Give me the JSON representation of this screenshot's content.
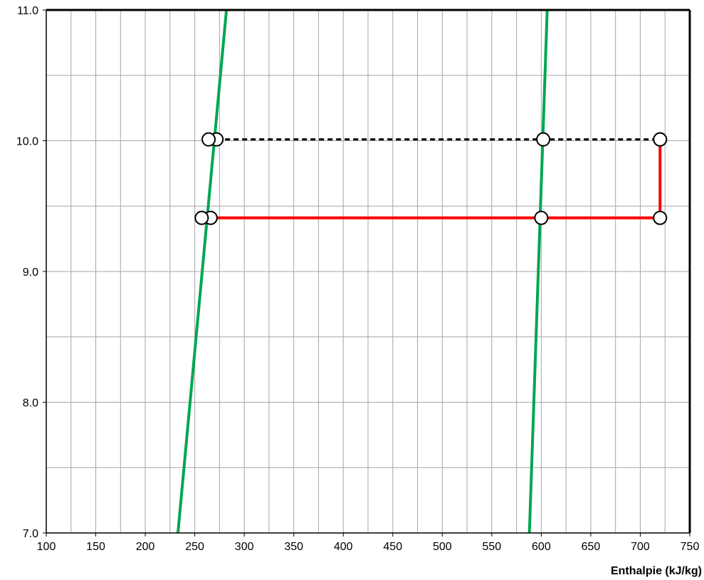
{
  "chart_data": {
    "type": "line",
    "title": "",
    "xlabel": "Enthalpie (kJ/kg)",
    "ylabel": "",
    "xlim": [
      100,
      750
    ],
    "ylim": [
      7.0,
      11.0
    ],
    "x_ticks": [
      100,
      150,
      200,
      250,
      300,
      350,
      400,
      450,
      500,
      550,
      600,
      650,
      700,
      750
    ],
    "x_tick_labels": [
      "100",
      "150",
      "200",
      "250",
      "300",
      "350",
      "400",
      "450",
      "500",
      "550",
      "600",
      "650",
      "700",
      "750"
    ],
    "y_ticks": [
      7.0,
      8.0,
      9.0,
      10.0,
      11.0
    ],
    "y_tick_labels": [
      "7.0",
      "8.0",
      "9.0",
      "10.0",
      "11.0"
    ],
    "x_minor_step": 25,
    "y_minor_step": 0.5,
    "grid": true,
    "series": [
      {
        "style": "solid",
        "color": "#00a651",
        "markers": false,
        "x": [
          233,
          282
        ],
        "y": [
          7.0,
          11.0
        ]
      },
      {
        "style": "solid",
        "color": "#00a651",
        "markers": false,
        "x": [
          588,
          606
        ],
        "y": [
          7.0,
          11.0
        ]
      },
      {
        "style": "solid",
        "color": "#ff0000",
        "markers": true,
        "x": [
          266,
          600,
          720,
          720
        ],
        "y": [
          9.41,
          9.41,
          9.41,
          10.01
        ]
      },
      {
        "style": "dashed",
        "color": "#000000",
        "markers": true,
        "x": [
          272,
          602,
          720
        ],
        "y": [
          10.01,
          10.01,
          10.01
        ]
      },
      {
        "style": "none",
        "color": "#000000",
        "markers": true,
        "x": [
          257,
          264
        ],
        "y": [
          9.41,
          10.01
        ]
      }
    ]
  }
}
